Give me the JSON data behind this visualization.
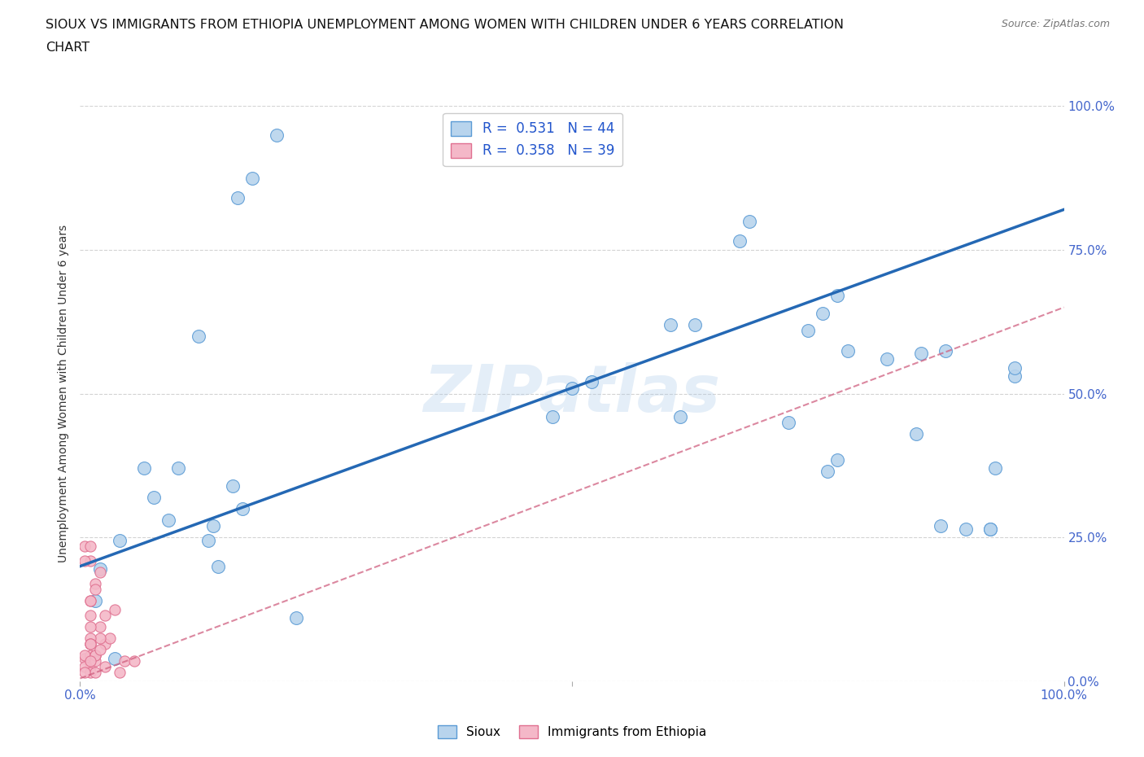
{
  "title_line1": "SIOUX VS IMMIGRANTS FROM ETHIOPIA UNEMPLOYMENT AMONG WOMEN WITH CHILDREN UNDER 6 YEARS CORRELATION",
  "title_line2": "CHART",
  "source": "Source: ZipAtlas.com",
  "ylabel": "Unemployment Among Women with Children Under 6 years",
  "watermark": "ZIPatlas",
  "legend_sioux_R": 0.531,
  "legend_sioux_N": 44,
  "legend_ethiopia_R": 0.358,
  "legend_ethiopia_N": 39,
  "sioux_color": "#b8d4ed",
  "sioux_edge_color": "#5b9bd5",
  "ethiopia_color": "#f4b8c8",
  "ethiopia_edge_color": "#e07090",
  "sioux_line_color": "#2468b4",
  "ethiopia_line_color": "#d06080",
  "background_color": "#ffffff",
  "grid_color": "#c8c8c8",
  "axis_tick_color": "#4466cc",
  "xlim": [
    0,
    1
  ],
  "ylim": [
    0,
    1
  ],
  "ytick_positions": [
    0,
    0.25,
    0.5,
    0.75,
    1.0
  ],
  "ytick_labels": [
    "0.0%",
    "25.0%",
    "50.0%",
    "75.0%",
    "100.0%"
  ],
  "xtick_positions": [
    0,
    0.5,
    1.0
  ],
  "xtick_labels": [
    "0.0%",
    "",
    "100.0%"
  ],
  "sioux_x": [
    0.14,
    0.1,
    0.12,
    0.065,
    0.075,
    0.09,
    0.13,
    0.16,
    0.135,
    0.02,
    0.04,
    0.5,
    0.52,
    0.48,
    0.625,
    0.68,
    0.72,
    0.74,
    0.77,
    0.82,
    0.855,
    0.875,
    0.9,
    0.93,
    0.95,
    0.015,
    0.035,
    0.22,
    0.67,
    0.755,
    0.78,
    0.88,
    0.925,
    0.925,
    0.95,
    0.155,
    0.165,
    0.175,
    0.2,
    0.6,
    0.61,
    0.76,
    0.77,
    0.85
  ],
  "sioux_y": [
    0.2,
    0.37,
    0.6,
    0.37,
    0.32,
    0.28,
    0.245,
    0.84,
    0.27,
    0.195,
    0.245,
    0.51,
    0.52,
    0.46,
    0.62,
    0.8,
    0.45,
    0.61,
    0.67,
    0.56,
    0.57,
    0.27,
    0.265,
    0.37,
    0.53,
    0.14,
    0.04,
    0.11,
    0.765,
    0.64,
    0.575,
    0.575,
    0.265,
    0.265,
    0.545,
    0.34,
    0.3,
    0.875,
    0.95,
    0.62,
    0.46,
    0.365,
    0.385,
    0.43
  ],
  "ethiopia_x": [
    0.005,
    0.01,
    0.01,
    0.015,
    0.02,
    0.01,
    0.005,
    0.005,
    0.01,
    0.015,
    0.025,
    0.03,
    0.035,
    0.02,
    0.01,
    0.015,
    0.025,
    0.01,
    0.005,
    0.01,
    0.015,
    0.02,
    0.01,
    0.025,
    0.045,
    0.04,
    0.055,
    0.015,
    0.01,
    0.015,
    0.01,
    0.005,
    0.01,
    0.015,
    0.02,
    0.01,
    0.01,
    0.01,
    0.005
  ],
  "ethiopia_y": [
    0.04,
    0.065,
    0.14,
    0.17,
    0.19,
    0.21,
    0.21,
    0.235,
    0.235,
    0.045,
    0.065,
    0.075,
    0.125,
    0.095,
    0.045,
    0.045,
    0.025,
    0.025,
    0.025,
    0.015,
    0.015,
    0.075,
    0.095,
    0.115,
    0.035,
    0.015,
    0.035,
    0.035,
    0.14,
    0.16,
    0.115,
    0.045,
    0.075,
    0.045,
    0.055,
    0.065,
    0.065,
    0.035,
    0.015
  ],
  "sioux_trend_x0": 0.0,
  "sioux_trend_y0": 0.2,
  "sioux_trend_x1": 1.0,
  "sioux_trend_y1": 0.82,
  "ethiopia_trend_x0": 0.0,
  "ethiopia_trend_y0": 0.005,
  "ethiopia_trend_x1": 1.0,
  "ethiopia_trend_y1": 0.65
}
